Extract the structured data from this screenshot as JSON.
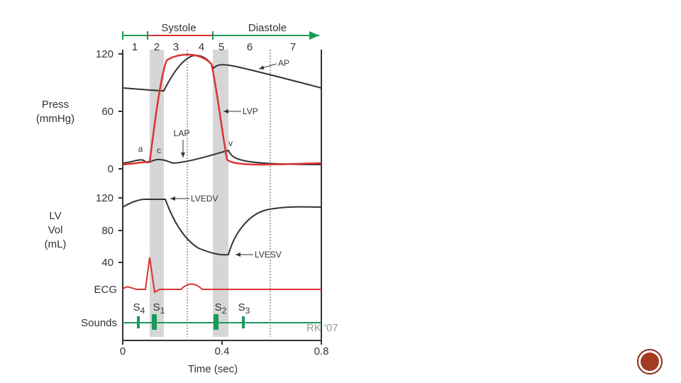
{
  "phases": {
    "systole": "Systole",
    "diastole": "Diastole",
    "numbers": [
      "1",
      "2",
      "3",
      "4",
      "5",
      "6",
      "7"
    ]
  },
  "pressure_axis": {
    "label": "Press",
    "unit": "(mmHg)",
    "ticks": [
      "120",
      "60",
      "0"
    ]
  },
  "volume_axis": {
    "label_1": "LV",
    "label_2": "Vol",
    "unit": "(mL)",
    "ticks": [
      "120",
      "80",
      "40"
    ]
  },
  "curve_labels": {
    "ap": "AP",
    "lvp": "LVP",
    "lap": "LAP",
    "a": "a",
    "c": "c",
    "v": "v",
    "lvedv": "LVEDV",
    "lvesv": "LVESV"
  },
  "ecg": "ECG",
  "sounds": {
    "label": "Sounds",
    "s4": {
      "letter": "S",
      "sub": "4"
    },
    "s1": {
      "letter": "S",
      "sub": "1"
    },
    "s2": {
      "letter": "S",
      "sub": "2"
    },
    "s3": {
      "letter": "S",
      "sub": "3"
    }
  },
  "time_axis": {
    "ticks": [
      "0",
      "0.4",
      "0.8"
    ],
    "label": "Time (sec)"
  },
  "credit": "RK '07"
}
